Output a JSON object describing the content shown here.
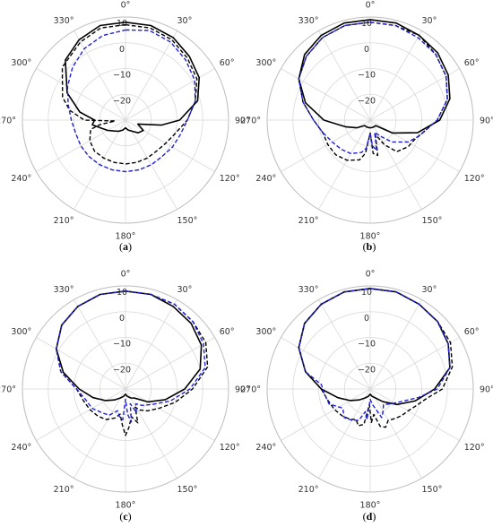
{
  "chart_data": [
    {
      "type": "polar-line",
      "label": "a",
      "angle_ticks": [
        "0°",
        "30°",
        "60°",
        "90°",
        "120°",
        "150°",
        "180°",
        "210°",
        "240°",
        "270°",
        "300°",
        "330°"
      ],
      "radial_ticks": [
        "10",
        "0",
        "−10",
        "−20"
      ],
      "rlim": [
        -30,
        10
      ],
      "rings": [
        -20,
        -10,
        0,
        10
      ],
      "angle_direction": "clockwise",
      "zero_location": "top",
      "grid": true,
      "series": [
        {
          "color": "#000000",
          "dash": "solid",
          "angles": [
            0,
            15,
            30,
            45,
            60,
            75,
            90,
            98,
            108,
            120,
            135,
            150,
            165,
            180,
            195,
            210,
            225,
            240,
            252,
            262,
            270,
            280,
            295,
            315,
            330,
            345,
            360
          ],
          "values": [
            8,
            8,
            7,
            5,
            3,
            -1,
            -9,
            -16,
            -25,
            -22,
            -23,
            -25,
            -26,
            -27,
            -26,
            -25,
            -24,
            -22,
            -20,
            -17,
            -18,
            -12,
            -5,
            3,
            6,
            8,
            8
          ]
        },
        {
          "color": "#000000",
          "dash": "dashed",
          "angles": [
            0,
            15,
            30,
            45,
            60,
            75,
            90,
            105,
            120,
            135,
            150,
            165,
            180,
            195,
            210,
            225,
            240,
            255,
            260,
            265,
            270,
            280,
            290,
            310,
            330,
            345,
            360
          ],
          "values": [
            7,
            7,
            6,
            4,
            2,
            -2,
            -6,
            -10,
            -12,
            -13,
            -13,
            -13,
            -13,
            -13,
            -13,
            -13,
            -14,
            -16,
            -20,
            -26,
            -14,
            -8,
            -4,
            2,
            5,
            7,
            7
          ]
        },
        {
          "color": "#1f1fd8",
          "dash": "dashed",
          "angles": [
            0,
            15,
            30,
            45,
            60,
            75,
            90,
            105,
            120,
            135,
            150,
            165,
            180,
            195,
            210,
            225,
            240,
            255,
            270,
            285,
            300,
            315,
            330,
            345,
            360
          ],
          "values": [
            5,
            6,
            5,
            3,
            1,
            -2,
            -6,
            -8,
            -9,
            -10,
            -10,
            -10,
            -10,
            -10,
            -10,
            -10,
            -10,
            -10,
            -9,
            -7,
            -4,
            -1,
            2,
            4,
            5
          ]
        }
      ]
    },
    {
      "type": "polar-line",
      "label": "b",
      "angle_ticks": [
        "0°",
        "30°",
        "60°",
        "90°",
        "120°",
        "150°",
        "180°",
        "210°",
        "240°",
        "270°",
        "300°",
        "330°"
      ],
      "radial_ticks": [
        "10",
        "0",
        "−10",
        "−20"
      ],
      "rlim": [
        -30,
        10
      ],
      "rings": [
        -20,
        -10,
        0,
        10
      ],
      "angle_direction": "clockwise",
      "zero_location": "top",
      "grid": true,
      "series": [
        {
          "color": "#000000",
          "dash": "solid",
          "angles": [
            0,
            15,
            30,
            45,
            60,
            75,
            90,
            105,
            120,
            135,
            150,
            165,
            180,
            195,
            210,
            225,
            240,
            255,
            270,
            285,
            300,
            315,
            330,
            345,
            360
          ],
          "values": [
            9,
            9,
            8,
            7,
            5,
            2,
            -3,
            -11,
            -20,
            -27,
            -27,
            -27,
            -27,
            -27,
            -27,
            -27,
            -24,
            -20,
            -12,
            -4,
            2,
            6,
            8,
            9,
            9
          ]
        },
        {
          "color": "#000000",
          "dash": "dashed",
          "angles": [
            0,
            15,
            30,
            45,
            60,
            75,
            90,
            100,
            112,
            125,
            140,
            150,
            160,
            168,
            175,
            180,
            188,
            195,
            210,
            225,
            240,
            255,
            270,
            285,
            300,
            315,
            330,
            345,
            360
          ],
          "values": [
            8,
            8,
            8,
            6,
            4,
            1,
            -4,
            -8,
            -11,
            -12,
            -14,
            -19,
            -24,
            -16,
            -17,
            -25,
            -17,
            -14,
            -12,
            -11,
            -11,
            -11,
            -8,
            -3,
            2,
            5,
            7,
            8,
            8
          ]
        },
        {
          "color": "#1f1fd8",
          "dash": "dashed",
          "angles": [
            0,
            15,
            30,
            45,
            60,
            75,
            90,
            100,
            108,
            120,
            135,
            150,
            160,
            168,
            175,
            180,
            188,
            195,
            210,
            225,
            240,
            255,
            270,
            285,
            300,
            315,
            330,
            345,
            360
          ],
          "values": [
            8,
            8,
            7,
            6,
            4,
            1,
            -4,
            -8,
            -10,
            -13,
            -18,
            -23,
            -25,
            -18,
            -20,
            -25,
            -19,
            -17,
            -15,
            -14,
            -13,
            -11,
            -8,
            -3,
            2,
            5,
            7,
            8,
            8
          ]
        }
      ]
    },
    {
      "type": "polar-line",
      "label": "c",
      "angle_ticks": [
        "0°",
        "30°",
        "60°",
        "90°",
        "120°",
        "150°",
        "180°",
        "210°",
        "240°",
        "270°",
        "300°",
        "330°"
      ],
      "radial_ticks": [
        "10",
        "0",
        "−10",
        "−20"
      ],
      "rlim": [
        -30,
        10
      ],
      "rings": [
        -20,
        -10,
        0,
        10
      ],
      "angle_direction": "clockwise",
      "zero_location": "top",
      "grid": true,
      "series": [
        {
          "color": "#000000",
          "dash": "solid",
          "angles": [
            0,
            15,
            30,
            45,
            60,
            75,
            90,
            105,
            120,
            135,
            150,
            165,
            180,
            195,
            210,
            225,
            240,
            255,
            270,
            285,
            300,
            315,
            330,
            345,
            360
          ],
          "values": [
            8,
            8,
            7,
            6,
            4,
            0,
            -7,
            -14,
            -20,
            -25,
            -26,
            -27,
            -28,
            -27,
            -26,
            -24,
            -21,
            -17,
            -12,
            -5,
            1,
            5,
            7,
            8,
            8
          ]
        },
        {
          "color": "#000000",
          "dash": "dashed",
          "angles": [
            0,
            15,
            30,
            45,
            60,
            75,
            90,
            105,
            120,
            135,
            145,
            152,
            160,
            168,
            175,
            180,
            185,
            192,
            200,
            212,
            225,
            240,
            255,
            270,
            285,
            300,
            315,
            330,
            345,
            360
          ],
          "values": [
            8,
            8,
            8,
            7,
            6,
            3,
            -4,
            -10,
            -15,
            -18,
            -20,
            -22,
            -16,
            -19,
            -15,
            -12,
            -16,
            -20,
            -18,
            -16,
            -15,
            -14,
            -13,
            -11,
            -4,
            1,
            5,
            7,
            8,
            8
          ]
        },
        {
          "color": "#1f1fd8",
          "dash": "dashed",
          "angles": [
            0,
            15,
            30,
            45,
            60,
            75,
            90,
            105,
            120,
            135,
            145,
            155,
            162,
            170,
            175,
            180,
            185,
            192,
            200,
            212,
            225,
            240,
            255,
            270,
            285,
            300,
            315,
            330,
            345,
            360
          ],
          "values": [
            8,
            8,
            8,
            7,
            5,
            2,
            -5,
            -12,
            -18,
            -21,
            -23,
            -20,
            -24,
            -17,
            -20,
            -26,
            -18,
            -19,
            -21,
            -18,
            -17,
            -15,
            -14,
            -11,
            -4,
            1,
            5,
            7,
            8,
            8
          ]
        }
      ]
    },
    {
      "type": "polar-line",
      "label": "d",
      "angle_ticks": [
        "0°",
        "30°",
        "60°",
        "90°",
        "120°",
        "150°",
        "180°",
        "210°",
        "240°",
        "270°",
        "300°",
        "330°"
      ],
      "radial_ticks": [
        "10",
        "0",
        "−10",
        "−20"
      ],
      "rlim": [
        -30,
        10
      ],
      "rings": [
        -20,
        -10,
        0,
        10
      ],
      "angle_direction": "clockwise",
      "zero_location": "top",
      "grid": true,
      "series": [
        {
          "color": "#000000",
          "dash": "solid",
          "angles": [
            0,
            15,
            30,
            45,
            60,
            75,
            90,
            105,
            120,
            135,
            150,
            165,
            180,
            195,
            210,
            225,
            240,
            255,
            270,
            285,
            300,
            315,
            330,
            345,
            360
          ],
          "values": [
            9,
            9,
            8,
            7,
            5,
            2,
            -5,
            -12,
            -18,
            -23,
            -26,
            -27,
            -28,
            -27,
            -26,
            -24,
            -21,
            -17,
            -11,
            -4,
            2,
            6,
            8,
            9,
            9
          ]
        },
        {
          "color": "#000000",
          "dash": "dashed",
          "angles": [
            0,
            15,
            30,
            45,
            60,
            75,
            90,
            100,
            110,
            120,
            130,
            140,
            150,
            158,
            165,
            172,
            178,
            183,
            190,
            198,
            205,
            212,
            225,
            240,
            255,
            270,
            285,
            300,
            315,
            330,
            345,
            360
          ],
          "values": [
            9,
            9,
            8,
            7,
            6,
            3,
            -2,
            -8,
            -11,
            -13,
            -14,
            -15,
            -16,
            -14,
            -15,
            -20,
            -17,
            -24,
            -16,
            -15,
            -17,
            -16,
            -15,
            -14,
            -13,
            -11,
            -4,
            2,
            6,
            8,
            9,
            9
          ]
        },
        {
          "color": "#1f1fd8",
          "dash": "dashed",
          "angles": [
            0,
            15,
            30,
            45,
            60,
            75,
            90,
            100,
            112,
            125,
            140,
            150,
            158,
            165,
            172,
            180,
            186,
            192,
            200,
            210,
            222,
            235,
            250,
            265,
            275,
            285,
            300,
            315,
            330,
            345,
            360
          ],
          "values": [
            9,
            9,
            8,
            7,
            5,
            2,
            -4,
            -11,
            -17,
            -20,
            -22,
            -20,
            -18,
            -22,
            -24,
            -26,
            -18,
            -21,
            -17,
            -16,
            -15,
            -17,
            -13,
            -12,
            -11,
            -4,
            2,
            6,
            8,
            9,
            9
          ]
        }
      ]
    }
  ],
  "captions": [
    {
      "open": "(",
      "letter": "a",
      "close": ")"
    },
    {
      "open": "(",
      "letter": "b",
      "close": ")"
    },
    {
      "open": "(",
      "letter": "c",
      "close": ")"
    },
    {
      "open": "(",
      "letter": "d",
      "close": ")"
    }
  ]
}
